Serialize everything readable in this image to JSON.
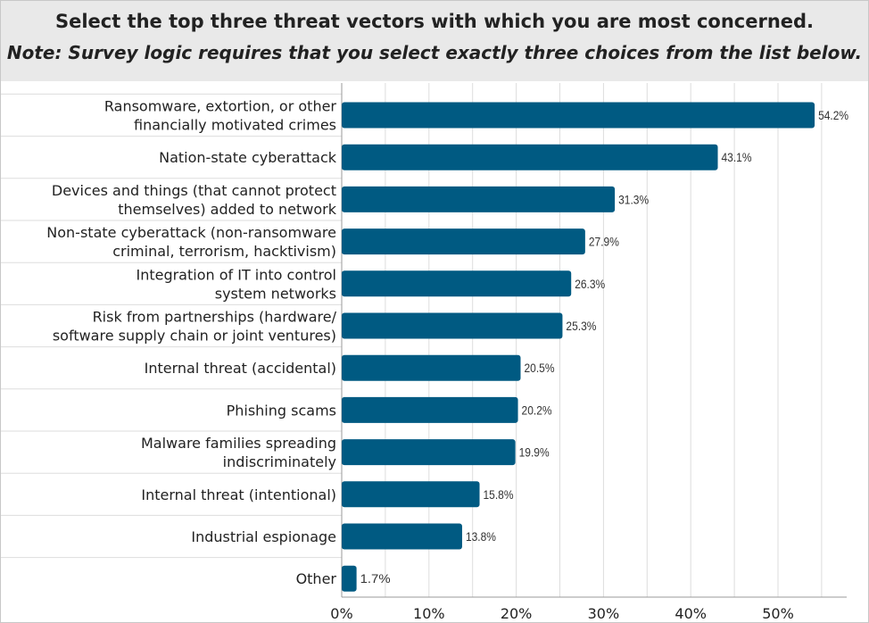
{
  "header": {
    "title": "Select the top three threat vectors with which you are most concerned.",
    "note": "Note: Survey logic requires that you select exactly three choices from the list below."
  },
  "chart_data": {
    "type": "bar",
    "orientation": "horizontal",
    "categories": [
      [
        "Ransomware, extortion, or other",
        "financially motivated crimes"
      ],
      [
        "Nation-state cyberattack"
      ],
      [
        "Devices and things (that cannot protect",
        "themselves) added to network"
      ],
      [
        "Non-state cyberattack (non-ransomware",
        "criminal, terrorism, hacktivism)"
      ],
      [
        "Integration of IT into control",
        "system networks"
      ],
      [
        "Risk from partnerships (hardware/",
        "software supply chain or joint ventures)"
      ],
      [
        "Internal threat (accidental)"
      ],
      [
        "Phishing scams"
      ],
      [
        "Malware families spreading",
        "indiscriminately"
      ],
      [
        "Internal threat (intentional)"
      ],
      [
        "Industrial espionage"
      ],
      [
        "Other"
      ]
    ],
    "values": [
      54.2,
      43.1,
      31.3,
      27.9,
      26.3,
      25.3,
      20.5,
      20.2,
      19.9,
      15.8,
      13.8,
      1.7
    ],
    "value_labels": [
      "54.2%",
      "43.1%",
      "31.3%",
      "27.9%",
      "26.3%",
      "25.3%",
      "20.5%",
      "20.2%",
      "19.9%",
      "15.8%",
      "13.8%",
      "1.7%"
    ],
    "xticks": [
      "0%",
      "10%",
      "20%",
      "30%",
      "40%",
      "50%"
    ],
    "xlim": [
      0,
      55
    ],
    "grid": true,
    "colors": {
      "bar": "#005a82",
      "grid": "#dddddd",
      "header_bg": "#e9e9e9"
    }
  }
}
